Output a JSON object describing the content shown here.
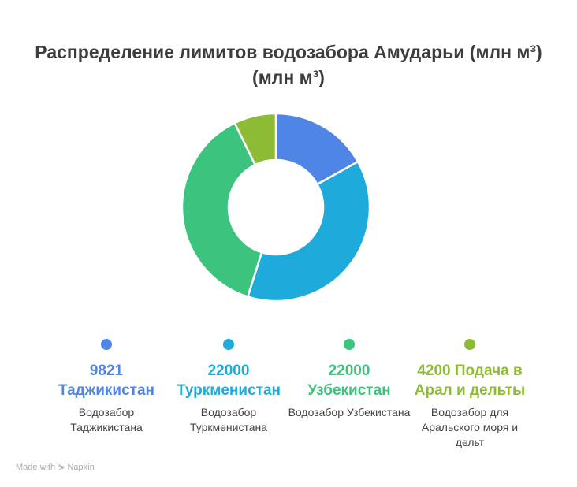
{
  "title_line1": "Распределение лимитов водозабора Амударьи (млн м³)",
  "title_line2": "(млн м³)",
  "chart_data": {
    "type": "pie",
    "donut": true,
    "title": "Распределение лимитов водозабора Амударьи (млн м³) (млн м³)",
    "categories": [
      "Таджикистан",
      "Туркменистан",
      "Узбекистан",
      "Подача в Арал и дельты"
    ],
    "values": [
      9821,
      22000,
      22000,
      4200
    ],
    "colors": [
      "#4f86e6",
      "#1faadc",
      "#3cc47f",
      "#8dbb35"
    ],
    "legend_placement": "bottom",
    "legend": [
      {
        "label": "9821 Таджикистан",
        "desc": "Водозабор Таджикистана"
      },
      {
        "label": "22000 Туркменистан",
        "desc": "Водозабор Туркменистана"
      },
      {
        "label": "22000 Узбекистан",
        "desc": "Водозабор Узбекистана"
      },
      {
        "label": "4200 Подача в Арал и дельты",
        "desc": "Водозабор для Аральского моря и дельт"
      }
    ]
  },
  "footer": "Made with ⋟ Napkin"
}
